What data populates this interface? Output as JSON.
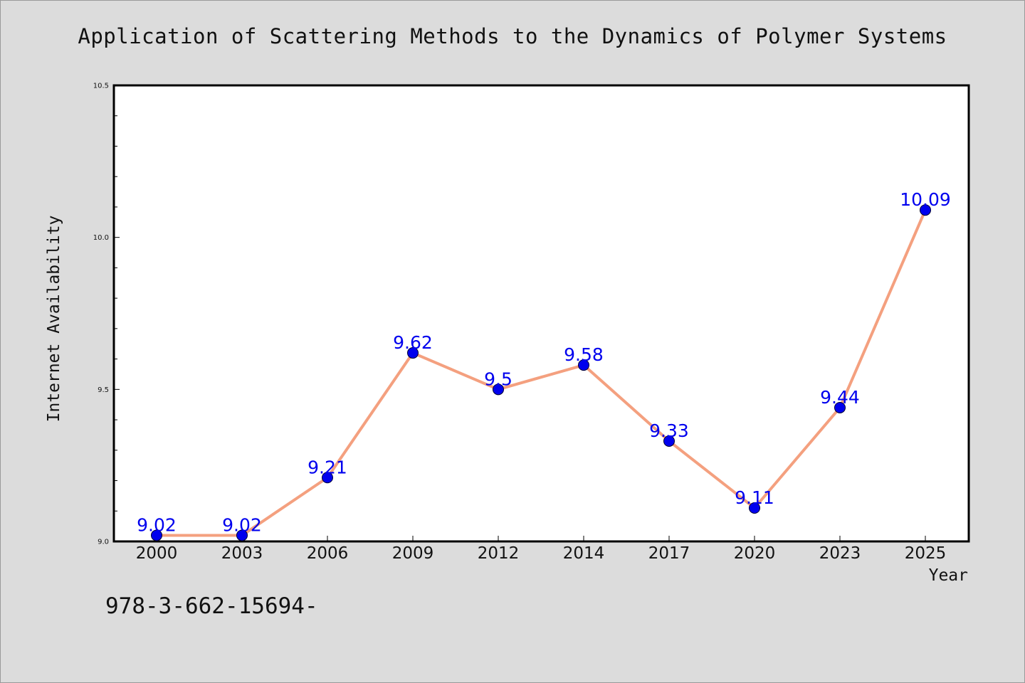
{
  "chart_data": {
    "type": "line",
    "title": "Application of Scattering Methods to the Dynamics of Polymer Systems",
    "xlabel": "Year",
    "ylabel": "Internet Availability",
    "categories": [
      "2000",
      "2003",
      "2006",
      "2009",
      "2012",
      "2014",
      "2017",
      "2020",
      "2023",
      "2025"
    ],
    "values": [
      9.02,
      9.02,
      9.21,
      9.62,
      9.5,
      9.58,
      9.33,
      9.11,
      9.44,
      10.09
    ],
    "data_labels": [
      "9.02",
      "9.02",
      "9.21",
      "9.62",
      "9.5",
      "9.58",
      "9.33",
      "9.11",
      "9.44",
      "10.09"
    ],
    "ylim": [
      9.0,
      10.5
    ],
    "yticks": [
      "9.0",
      "9.5",
      "10.0",
      "10.5"
    ],
    "grid": false,
    "line_color": "#f4a07f",
    "marker_color": "#0000ee",
    "label_color": "#0000ee"
  },
  "footnote": "978-3-662-15694-"
}
